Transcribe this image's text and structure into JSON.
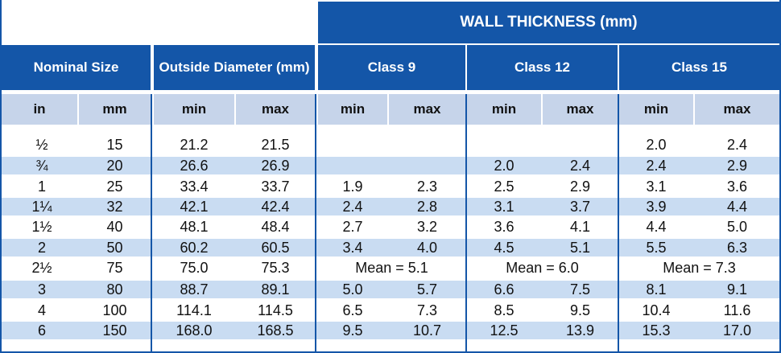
{
  "wall_thickness_header": "WALL THICKNESS (mm)",
  "groups": {
    "nominal": "Nominal Size",
    "outside_diameter": "Outside Diameter (mm)",
    "class9": "Class 9",
    "class12": "Class 12",
    "class15": "Class 15"
  },
  "subheaders": [
    "in",
    "mm",
    "min",
    "max",
    "min",
    "max",
    "min",
    "max",
    "min",
    "max"
  ],
  "rows": [
    {
      "in": "½",
      "mm": "15",
      "od_min": "21.2",
      "od_max": "21.5",
      "c9": [
        "",
        ""
      ],
      "c12": [
        "",
        ""
      ],
      "c15": [
        "2.0",
        "2.4"
      ]
    },
    {
      "in": "¾",
      "mm": "20",
      "od_min": "26.6",
      "od_max": "26.9",
      "c9": [
        "",
        ""
      ],
      "c12": [
        "2.0",
        "2.4"
      ],
      "c15": [
        "2.4",
        "2.9"
      ]
    },
    {
      "in": "1",
      "mm": "25",
      "od_min": "33.4",
      "od_max": "33.7",
      "c9": [
        "1.9",
        "2.3"
      ],
      "c12": [
        "2.5",
        "2.9"
      ],
      "c15": [
        "3.1",
        "3.6"
      ]
    },
    {
      "in": "1¼",
      "mm": "32",
      "od_min": "42.1",
      "od_max": "42.4",
      "c9": [
        "2.4",
        "2.8"
      ],
      "c12": [
        "3.1",
        "3.7"
      ],
      "c15": [
        "3.9",
        "4.4"
      ]
    },
    {
      "in": "1½",
      "mm": "40",
      "od_min": "48.1",
      "od_max": "48.4",
      "c9": [
        "2.7",
        "3.2"
      ],
      "c12": [
        "3.6",
        "4.1"
      ],
      "c15": [
        "4.4",
        "5.0"
      ]
    },
    {
      "in": "2",
      "mm": "50",
      "od_min": "60.2",
      "od_max": "60.5",
      "c9": [
        "3.4",
        "4.0"
      ],
      "c12": [
        "4.5",
        "5.1"
      ],
      "c15": [
        "5.5",
        "6.3"
      ]
    },
    {
      "in": "2½",
      "mm": "75",
      "od_min": "75.0",
      "od_max": "75.3",
      "c9_mean": "Mean = 5.1",
      "c12_mean": "Mean = 6.0",
      "c15_mean": "Mean = 7.3"
    },
    {
      "in": "3",
      "mm": "80",
      "od_min": "88.7",
      "od_max": "89.1",
      "c9": [
        "5.0",
        "5.7"
      ],
      "c12": [
        "6.6",
        "7.5"
      ],
      "c15": [
        "8.1",
        "9.1"
      ]
    },
    {
      "in": "4",
      "mm": "100",
      "od_min": "114.1",
      "od_max": "114.5",
      "c9": [
        "6.5",
        "7.3"
      ],
      "c12": [
        "8.5",
        "9.5"
      ],
      "c15": [
        "10.4",
        "11.6"
      ]
    },
    {
      "in": "6",
      "mm": "150",
      "od_min": "168.0",
      "od_max": "168.5",
      "c9": [
        "9.5",
        "10.7"
      ],
      "c12": [
        "12.5",
        "13.9"
      ],
      "c15": [
        "15.3",
        "17.0"
      ]
    }
  ],
  "colors": {
    "header_blue": "#1456a8",
    "subheader": "#c6d4ea",
    "stripe": "#c9dcf2"
  }
}
